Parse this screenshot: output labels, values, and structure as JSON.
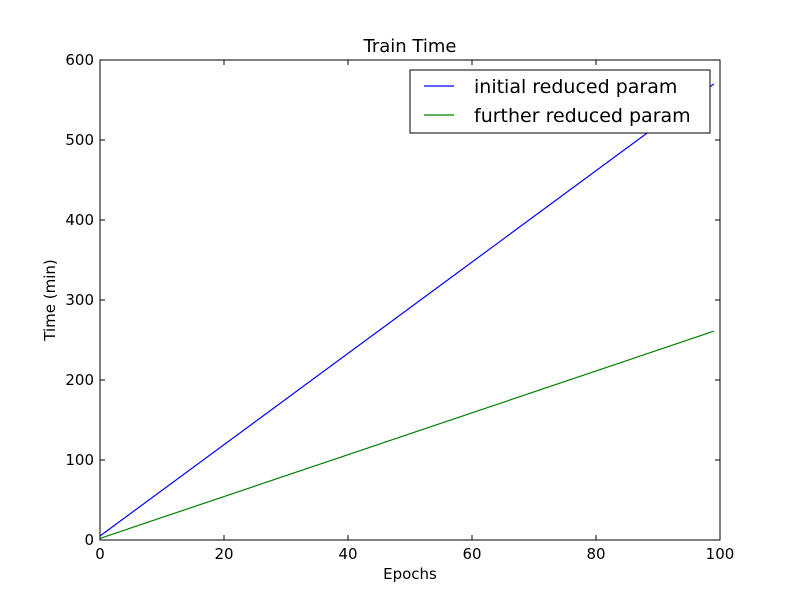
{
  "chart_data": {
    "type": "line",
    "title": "Train Time",
    "xlabel": "Epochs",
    "ylabel": "Time (min)",
    "xlim": [
      0,
      100
    ],
    "ylim": [
      0,
      600
    ],
    "x_ticks": [
      0,
      20,
      40,
      60,
      80,
      100
    ],
    "y_ticks": [
      0,
      100,
      200,
      300,
      400,
      500,
      600
    ],
    "x_tick_labels": [
      "0",
      "20",
      "40",
      "60",
      "80",
      "100"
    ],
    "y_tick_labels": [
      "0",
      "100",
      "200",
      "300",
      "400",
      "500",
      "600"
    ],
    "grid": false,
    "legend_position": "top-right",
    "series": [
      {
        "name": "initial reduced param",
        "color": "#0000ff",
        "x": [
          0,
          99
        ],
        "y": [
          5,
          570
        ]
      },
      {
        "name": "further reduced param",
        "color": "#008000",
        "x": [
          0,
          99
        ],
        "y": [
          2,
          261
        ]
      }
    ]
  }
}
